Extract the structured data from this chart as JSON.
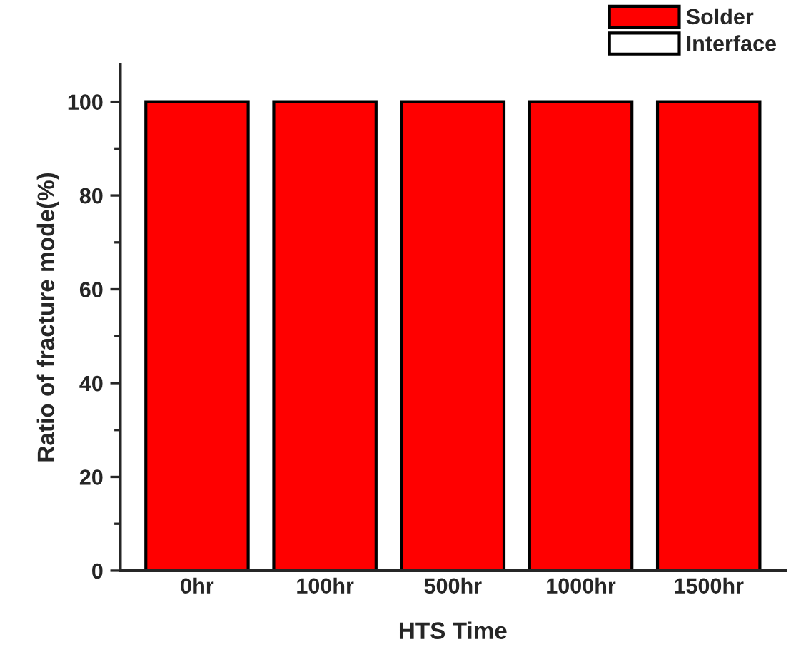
{
  "chart_data": {
    "type": "bar",
    "stacked": true,
    "categories": [
      "0hr",
      "100hr",
      "500hr",
      "1000hr",
      "1500hr"
    ],
    "series": [
      {
        "name": "Solder",
        "color": "#ff0000",
        "values": [
          100,
          100,
          100,
          100,
          100
        ]
      },
      {
        "name": "Interface",
        "color": "#ffffff",
        "values": [
          0,
          0,
          0,
          0,
          0
        ]
      }
    ],
    "xlabel": "HTS Time",
    "ylabel": "Ratio of fracture mode(%)",
    "ylim": [
      0,
      108
    ],
    "yticks": [
      0,
      20,
      40,
      60,
      80,
      100
    ],
    "grid": false,
    "legend": "top right"
  }
}
